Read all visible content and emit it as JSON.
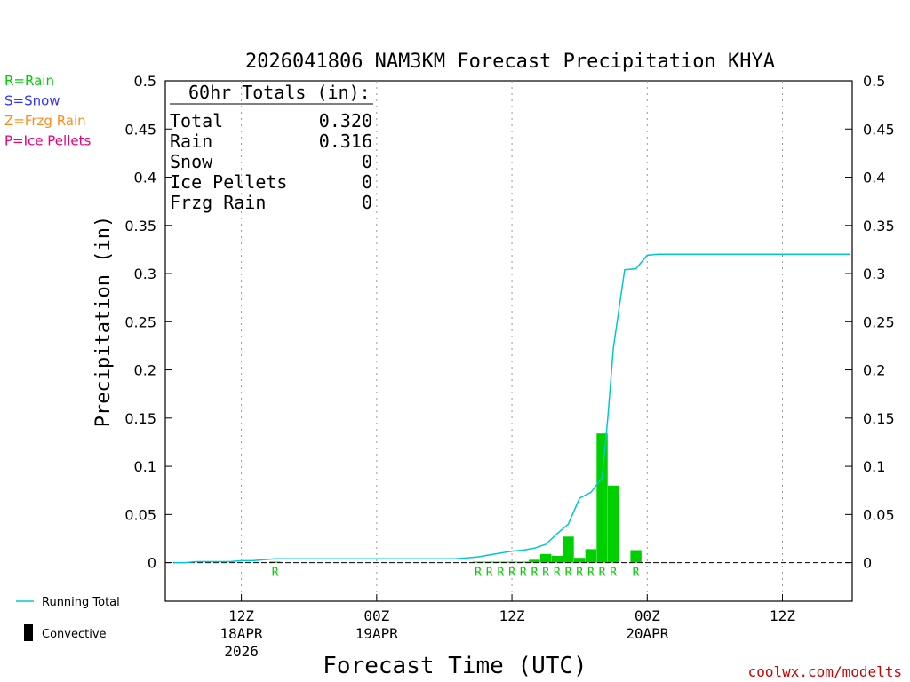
{
  "chart_data": {
    "type": "bar",
    "title": "2026041806 NAM3KM Forecast Precipitation KHYA",
    "xlabel": "Forecast Time (UTC)",
    "ylabel": "Precipitation (in)",
    "ylim": [
      -0.04,
      0.5
    ],
    "xlim_hours": [
      0,
      60
    ],
    "grid": "vertical dotted",
    "y_ticks": [
      "0.5",
      "0.45",
      "0.4",
      "0.35",
      "0.3",
      "0.25",
      "0.2",
      "0.15",
      "0.1",
      "0.05",
      "0"
    ],
    "x_ticks": [
      {
        "hour": 6,
        "line1": "12Z",
        "line2": "18APR",
        "line3": "2026"
      },
      {
        "hour": 18,
        "line1": "00Z",
        "line2": "19APR",
        "line3": ""
      },
      {
        "hour": 30,
        "line1": "12Z",
        "line2": "",
        "line3": ""
      },
      {
        "hour": 42,
        "line1": "00Z",
        "line2": "20APR",
        "line3": ""
      },
      {
        "hour": 54,
        "line1": "12Z",
        "line2": "",
        "line3": ""
      }
    ],
    "bars": [
      {
        "hour": 9,
        "value": 0.001,
        "ptype": "R"
      },
      {
        "hour": 27,
        "value": 0.001,
        "ptype": "R"
      },
      {
        "hour": 28,
        "value": 0.001,
        "ptype": "R"
      },
      {
        "hour": 29,
        "value": 0.001,
        "ptype": "R"
      },
      {
        "hour": 30,
        "value": 0.001,
        "ptype": "R"
      },
      {
        "hour": 31,
        "value": 0.001,
        "ptype": "R"
      },
      {
        "hour": 32,
        "value": 0.003,
        "ptype": "R"
      },
      {
        "hour": 33,
        "value": 0.009,
        "ptype": "R"
      },
      {
        "hour": 34,
        "value": 0.007,
        "ptype": "R"
      },
      {
        "hour": 35,
        "value": 0.027,
        "ptype": "R"
      },
      {
        "hour": 36,
        "value": 0.005,
        "ptype": "R"
      },
      {
        "hour": 37,
        "value": 0.014,
        "ptype": "R"
      },
      {
        "hour": 38,
        "value": 0.134,
        "ptype": "R"
      },
      {
        "hour": 39,
        "value": 0.08,
        "ptype": "R"
      },
      {
        "hour": 41,
        "value": 0.013,
        "ptype": "R"
      }
    ],
    "running_total": [
      [
        0,
        0
      ],
      [
        1,
        0
      ],
      [
        2,
        0.001
      ],
      [
        3,
        0.001
      ],
      [
        4,
        0.001
      ],
      [
        5,
        0.001
      ],
      [
        6,
        0.002
      ],
      [
        7,
        0.002
      ],
      [
        8,
        0.003
      ],
      [
        9,
        0.004
      ],
      [
        10,
        0.004
      ],
      [
        11,
        0.004
      ],
      [
        12,
        0.004
      ],
      [
        13,
        0.004
      ],
      [
        14,
        0.004
      ],
      [
        15,
        0.004
      ],
      [
        16,
        0.004
      ],
      [
        17,
        0.004
      ],
      [
        18,
        0.004
      ],
      [
        19,
        0.004
      ],
      [
        20,
        0.004
      ],
      [
        21,
        0.004
      ],
      [
        22,
        0.004
      ],
      [
        23,
        0.004
      ],
      [
        24,
        0.004
      ],
      [
        25,
        0.004
      ],
      [
        26,
        0.005
      ],
      [
        27,
        0.006
      ],
      [
        28,
        0.008
      ],
      [
        29,
        0.01
      ],
      [
        30,
        0.012
      ],
      [
        31,
        0.013
      ],
      [
        32,
        0.015
      ],
      [
        33,
        0.019
      ],
      [
        34,
        0.03
      ],
      [
        35,
        0.04
      ],
      [
        36,
        0.067
      ],
      [
        37,
        0.073
      ],
      [
        38,
        0.088
      ],
      [
        38.5,
        0.15
      ],
      [
        39,
        0.223
      ],
      [
        40,
        0.304
      ],
      [
        41,
        0.305
      ],
      [
        42,
        0.319
      ],
      [
        43,
        0.32
      ],
      [
        60,
        0.32
      ]
    ],
    "totals_box": {
      "header": "60hr Totals (in):",
      "rows": [
        {
          "label": "Total",
          "value": "0.320"
        },
        {
          "label": "Rain",
          "value": "0.316"
        },
        {
          "label": "Snow",
          "value": "0"
        },
        {
          "label": "Ice Pellets",
          "value": "0"
        },
        {
          "label": "Frzg Rain",
          "value": "0"
        }
      ]
    },
    "ptype_legend": [
      {
        "text": "R=Rain",
        "color": "#00cc00"
      },
      {
        "text": "S=Snow",
        "color": "#3333ff"
      },
      {
        "text": "Z=Frzg Rain",
        "color": "#ff8c1a"
      },
      {
        "text": "P=Ice Pellets",
        "color": "#e6007e"
      }
    ],
    "series_legend": [
      {
        "text": "Running Total",
        "color": "#00c8d2"
      },
      {
        "text": "Convective",
        "color": "#000000"
      }
    ],
    "credit": "coolwx.com/modelts",
    "colors": {
      "rain_bar": "#00d000",
      "running_total": "#00c8d2",
      "credit": "#cc0000",
      "grid": "#999999"
    }
  }
}
